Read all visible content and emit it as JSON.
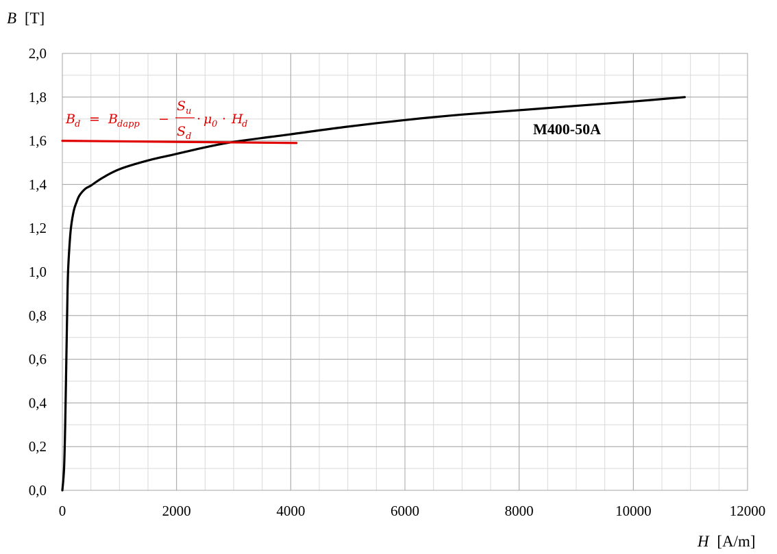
{
  "chart_data": {
    "type": "line",
    "ylabel_symbol": "B",
    "ylabel_unit": "[T]",
    "xlabel_symbol": "H",
    "xlabel_unit": "[A/m]",
    "xlim": [
      0,
      12000
    ],
    "ylim": [
      0,
      2.0
    ],
    "x_major_ticks": [
      0,
      2000,
      4000,
      6000,
      8000,
      10000,
      12000
    ],
    "y_major_ticks": [
      0,
      0.2,
      0.4,
      0.6,
      0.8,
      1.0,
      1.2,
      1.4,
      1.6,
      1.8,
      2.0
    ],
    "x_tick_labels": [
      "0",
      "2000",
      "4000",
      "6000",
      "8000",
      "10000",
      "12000"
    ],
    "y_tick_labels": [
      "0,0",
      "0,2",
      "0,4",
      "0,6",
      "0,8",
      "1,0",
      "1,2",
      "1,4",
      "1,6",
      "1,8",
      "2,0"
    ],
    "x_minor_step": 500,
    "y_minor_step": 0.1,
    "grid": true,
    "series": [
      {
        "name": "M400-50A",
        "color": "#000000",
        "x": [
          0,
          30,
          50,
          70,
          90,
          100,
          120,
          150,
          200,
          250,
          300,
          400,
          500,
          700,
          1000,
          1500,
          2000,
          2500,
          3000,
          4000,
          5000,
          6000,
          7000,
          8000,
          9000,
          10000,
          10900
        ],
        "y": [
          0.0,
          0.1,
          0.3,
          0.6,
          0.9,
          1.0,
          1.1,
          1.2,
          1.28,
          1.32,
          1.35,
          1.38,
          1.395,
          1.43,
          1.47,
          1.51,
          1.54,
          1.57,
          1.595,
          1.63,
          1.665,
          1.695,
          1.72,
          1.74,
          1.76,
          1.78,
          1.8
        ]
      },
      {
        "color": "#e00000",
        "x": [
          0,
          4100
        ],
        "y": [
          1.6,
          1.59
        ]
      }
    ],
    "annotation": {
      "series_label": "M400-50A",
      "equation": {
        "B": "B",
        "d": "d",
        "eq": "=",
        "dapp": "dapp",
        "minus": "−",
        "S": "S",
        "u": "u",
        "dot": "·",
        "mu": "μ",
        "zero": "0",
        "H": "H"
      }
    }
  }
}
